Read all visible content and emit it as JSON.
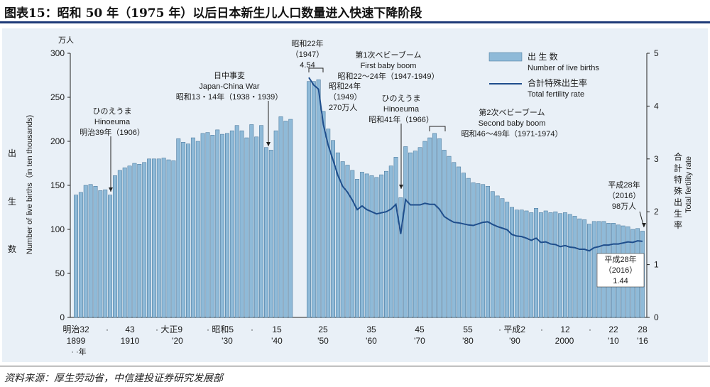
{
  "figure": {
    "title": "图表15：昭和 50 年（1975 年）以后日本新生儿人口数量进入快速下降阶段",
    "source": "资料来源：厚生劳动省，中信建投证券研究发展部"
  },
  "colors": {
    "bar": "#8fbad8",
    "bar_edge": "#3f6f94",
    "line": "#1f4e8c",
    "panel": "#e9f0f7",
    "title_rule": "#1f3b78"
  },
  "chart_data": {
    "type": "bar",
    "x": [
      1899,
      1900,
      1901,
      1902,
      1903,
      1904,
      1905,
      1906,
      1907,
      1908,
      1909,
      1910,
      1911,
      1912,
      1913,
      1914,
      1915,
      1916,
      1917,
      1918,
      1919,
      1920,
      1921,
      1922,
      1923,
      1924,
      1925,
      1926,
      1927,
      1928,
      1929,
      1930,
      1931,
      1932,
      1933,
      1934,
      1935,
      1936,
      1937,
      1938,
      1939,
      1940,
      1941,
      1942,
      1943,
      1947,
      1948,
      1949,
      1950,
      1951,
      1952,
      1953,
      1954,
      1955,
      1956,
      1957,
      1958,
      1959,
      1960,
      1961,
      1962,
      1963,
      1964,
      1965,
      1966,
      1967,
      1968,
      1969,
      1970,
      1971,
      1972,
      1973,
      1974,
      1975,
      1976,
      1977,
      1978,
      1979,
      1980,
      1981,
      1982,
      1983,
      1984,
      1985,
      1986,
      1987,
      1988,
      1989,
      1990,
      1991,
      1992,
      1993,
      1994,
      1995,
      1996,
      1997,
      1998,
      1999,
      2000,
      2001,
      2002,
      2003,
      2004,
      2005,
      2006,
      2007,
      2008,
      2009,
      2010,
      2011,
      2012,
      2013,
      2014,
      2015,
      2016
    ],
    "values": [
      139,
      142,
      150,
      151,
      149,
      144,
      145,
      139,
      161,
      167,
      170,
      172,
      175,
      174,
      176,
      180,
      180,
      180,
      181,
      179,
      178,
      203,
      199,
      197,
      204,
      200,
      209,
      210,
      207,
      213,
      208,
      209,
      212,
      218,
      212,
      204,
      219,
      205,
      218,
      193,
      190,
      212,
      228,
      223,
      225,
      268,
      268,
      270,
      234,
      214,
      201,
      187,
      177,
      173,
      167,
      157,
      165,
      163,
      161,
      159,
      162,
      166,
      172,
      182,
      136,
      194,
      187,
      189,
      193,
      200,
      204,
      209,
      203,
      190,
      183,
      176,
      171,
      164,
      158,
      153,
      152,
      151,
      149,
      143,
      138,
      135,
      131,
      125,
      122,
      122,
      121,
      119,
      124,
      119,
      121,
      119,
      120,
      118,
      119,
      117,
      115,
      112,
      111,
      106,
      109,
      109,
      109,
      107,
      107,
      105,
      104,
      103,
      100,
      101,
      98
    ],
    "line_years": [
      1947,
      1948,
      1949,
      1950,
      1951,
      1952,
      1953,
      1954,
      1955,
      1956,
      1957,
      1958,
      1959,
      1960,
      1961,
      1962,
      1963,
      1964,
      1965,
      1966,
      1967,
      1968,
      1969,
      1970,
      1971,
      1972,
      1973,
      1974,
      1975,
      1976,
      1977,
      1978,
      1979,
      1980,
      1981,
      1982,
      1983,
      1984,
      1985,
      1986,
      1987,
      1988,
      1989,
      1990,
      1991,
      1992,
      1993,
      1994,
      1995,
      1996,
      1997,
      1998,
      1999,
      2000,
      2001,
      2002,
      2003,
      2004,
      2005,
      2006,
      2007,
      2008,
      2009,
      2010,
      2011,
      2012,
      2013,
      2014,
      2015,
      2016
    ],
    "line_values": [
      4.54,
      4.4,
      4.32,
      3.65,
      3.26,
      2.98,
      2.69,
      2.48,
      2.37,
      2.22,
      2.04,
      2.11,
      2.04,
      2.0,
      1.96,
      1.98,
      2.0,
      2.05,
      2.14,
      1.58,
      2.23,
      2.13,
      2.13,
      2.13,
      2.16,
      2.14,
      2.14,
      2.05,
      1.91,
      1.85,
      1.8,
      1.79,
      1.77,
      1.75,
      1.74,
      1.77,
      1.8,
      1.81,
      1.76,
      1.72,
      1.69,
      1.66,
      1.57,
      1.54,
      1.53,
      1.5,
      1.46,
      1.5,
      1.42,
      1.43,
      1.39,
      1.38,
      1.34,
      1.36,
      1.33,
      1.32,
      1.29,
      1.29,
      1.26,
      1.32,
      1.34,
      1.37,
      1.37,
      1.39,
      1.39,
      1.41,
      1.43,
      1.42,
      1.45,
      1.44
    ],
    "ylim": [
      0,
      300
    ],
    "y2lim": [
      0,
      5
    ],
    "yticks": [
      0,
      50,
      100,
      150,
      200,
      250,
      300
    ],
    "y2ticks": [
      0,
      1,
      2,
      3,
      4,
      5
    ],
    "y_unit": "万人",
    "ylabel_cn": "出\n生\n数",
    "ylabel_en": "Number of live births（in ten thousands)",
    "y2label_cn": "合計特殊出生率",
    "y2label_en": "Total fertility rate",
    "legend": [
      {
        "cn": "出  生  数",
        "en": "Number of live births"
      },
      {
        "cn": "合計特殊出生率",
        "en": "Total fertility rate"
      }
    ],
    "xticks_top": [
      "明治32",
      "·",
      "43",
      "· 大正9",
      "· 昭和5",
      "·",
      "15",
      "25",
      "35",
      "45",
      "55",
      "· 平成2",
      "·",
      "12",
      "·",
      "22",
      "28"
    ],
    "xticks_bottom": [
      "1899",
      "1910",
      "'20",
      "'30",
      "'40",
      "'50",
      "'60",
      "'70",
      "'80",
      "'90",
      "2000",
      "'10",
      "'16"
    ],
    "x_unit": "· ·年",
    "annotations": {
      "hinoeuma1906": [
        "ひのえうま",
        "Hinoeuma",
        "明治39年（1906）"
      ],
      "war": [
        "日中事変",
        "Japan-China War",
        "昭和13・14年（1938・1939）"
      ],
      "peak1947": [
        "昭和22年",
        "（1947）",
        "4.54"
      ],
      "boom1": [
        "第1次ベビーブーム",
        "First baby boom",
        "昭和22〜24年（1947-1949）"
      ],
      "peak1949": [
        "昭和24年",
        "（1949）",
        "270万人"
      ],
      "hinoeuma1966": [
        "ひのえうま",
        "Hinoeuma",
        "昭和41年（1966）"
      ],
      "boom2": [
        "第2次ベビーブーム",
        "Second baby boom",
        "昭和46〜49年（1971-1974）"
      ],
      "births2016": [
        "平成28年",
        "（2016）",
        "98万人"
      ],
      "tfr2016": [
        "平成28年",
        "（2016）",
        "1.44"
      ]
    }
  }
}
